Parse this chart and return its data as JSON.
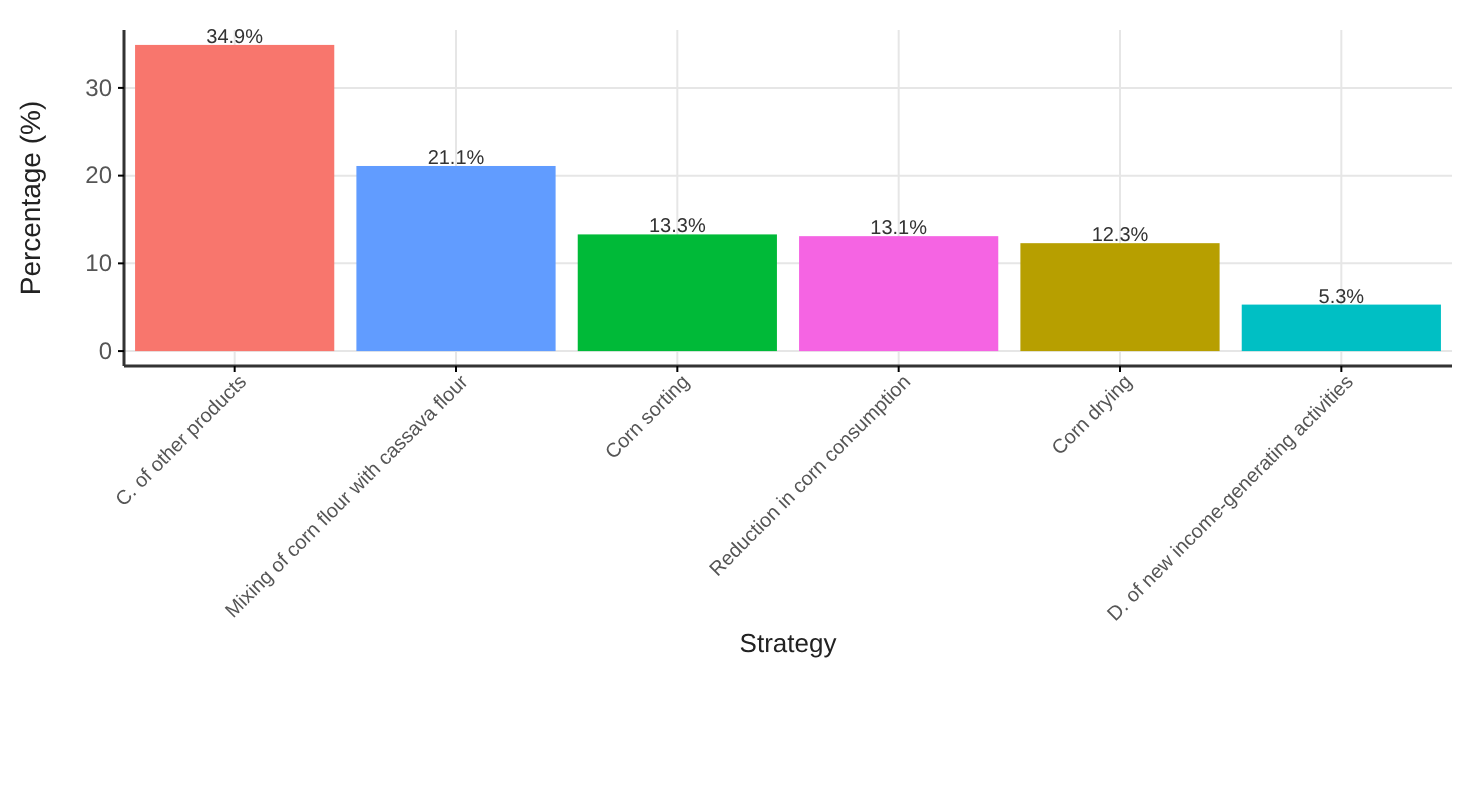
{
  "chart_data": {
    "type": "bar",
    "xlabel": "Strategy",
    "ylabel": "Percentage (%)",
    "categories": [
      "C. of other products",
      "Mixing of corn flour with cassava flour",
      "Corn sorting",
      "Reduction in corn consumption",
      "Corn drying",
      "D. of new income-generating activities"
    ],
    "values": [
      34.9,
      21.1,
      13.3,
      13.1,
      12.3,
      5.3
    ],
    "colors": [
      "#f8766d",
      "#619cff",
      "#00ba38",
      "#f564e3",
      "#b79f00",
      "#00bfc4"
    ],
    "value_labels": [
      "34.9%",
      "21.1%",
      "13.3%",
      "13.1%",
      "12.3%",
      "5.3%"
    ],
    "ylim": [
      -1.7,
      36.6
    ],
    "yticks": [
      0,
      10,
      20,
      30
    ],
    "grid": true
  }
}
